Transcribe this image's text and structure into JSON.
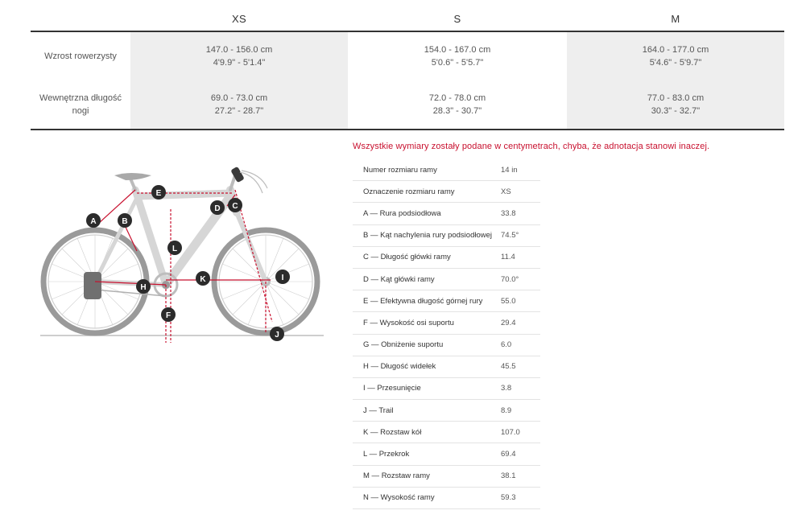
{
  "size_table": {
    "columns": [
      "XS",
      "S",
      "M"
    ],
    "rows": [
      {
        "label_lines": [
          "Wzrost rowerzysty"
        ],
        "cells": [
          [
            "147.0 - 156.0 cm",
            "4'9.9\" - 5'1.4\""
          ],
          [
            "154.0 - 167.0 cm",
            "5'0.6\" - 5'5.7\""
          ],
          [
            "164.0 - 177.0 cm",
            "5'4.6\" - 5'9.7\""
          ]
        ]
      },
      {
        "label_lines": [
          "Wewnętrzna długość",
          "nogi"
        ],
        "cells": [
          [
            "69.0 - 73.0 cm",
            "27.2\" - 28.7\""
          ],
          [
            "72.0 - 78.0 cm",
            "28.3\" - 30.7\""
          ],
          [
            "77.0 - 83.0 cm",
            "30.3\" - 32.7\""
          ]
        ]
      }
    ]
  },
  "note": "Wszystkie wymiary zostały podane w centymetrach, chyba, że adnotacja stanowi inaczej.",
  "geometry": [
    {
      "name": "Numer rozmiaru ramy",
      "value": "14 in"
    },
    {
      "name": "Oznaczenie rozmiaru ramy",
      "value": "XS"
    },
    {
      "name": "A — Rura podsiodłowa",
      "value": "33.8"
    },
    {
      "name": "B — Kąt nachylenia rury podsiodłowej",
      "value": "74.5°"
    },
    {
      "name": "C — Długość główki ramy",
      "value": "11.4"
    },
    {
      "name": "D — Kąt główki ramy",
      "value": "70.0°"
    },
    {
      "name": "E — Efektywna długość górnej rury",
      "value": "55.0"
    },
    {
      "name": "F — Wysokość osi suportu",
      "value": "29.4"
    },
    {
      "name": "G — Obniżenie suportu",
      "value": "6.0"
    },
    {
      "name": "H — Długość widełek",
      "value": "45.5"
    },
    {
      "name": "I — Przesunięcie",
      "value": "3.8"
    },
    {
      "name": "J — Trail",
      "value": "8.9"
    },
    {
      "name": "K — Rozstaw kół",
      "value": "107.0"
    },
    {
      "name": "L — Przekrok",
      "value": "69.4"
    },
    {
      "name": "M — Rozstaw ramy",
      "value": "38.1"
    },
    {
      "name": "N — Wysokość ramy",
      "value": "59.3"
    }
  ],
  "bike_labels": {
    "A": "A",
    "B": "B",
    "C": "C",
    "D": "D",
    "E": "E",
    "F": "F",
    "H": "H",
    "I": "I",
    "J": "J",
    "K": "K",
    "L": "L"
  },
  "colors": {
    "accent": "#c8102e",
    "frame": "#d6d6d6",
    "marker": "#2b2b2b",
    "cell_shade": "#eeeeee"
  }
}
